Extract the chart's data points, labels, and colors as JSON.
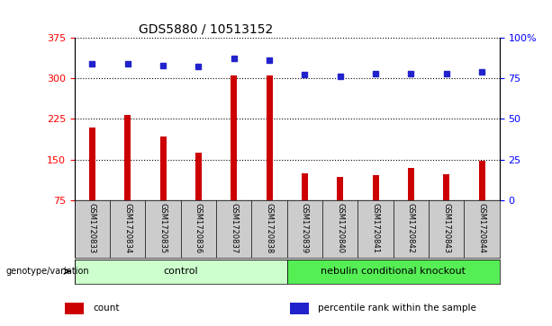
{
  "title": "GDS5880 / 10513152",
  "samples": [
    "GSM1720833",
    "GSM1720834",
    "GSM1720835",
    "GSM1720836",
    "GSM1720837",
    "GSM1720838",
    "GSM1720839",
    "GSM1720840",
    "GSM1720841",
    "GSM1720842",
    "GSM1720843",
    "GSM1720844"
  ],
  "counts": [
    210,
    232,
    193,
    163,
    305,
    305,
    125,
    118,
    122,
    135,
    124,
    148
  ],
  "percentiles": [
    84,
    84,
    83,
    82,
    87,
    86,
    77,
    76,
    78,
    78,
    78,
    79
  ],
  "ylim_left": [
    75,
    375
  ],
  "ylim_right": [
    0,
    100
  ],
  "yticks_left": [
    75,
    150,
    225,
    300,
    375
  ],
  "yticks_right": [
    0,
    25,
    75,
    100
  ],
  "yticks_right_labeled": [
    0,
    25,
    50,
    75,
    100
  ],
  "bar_color": "#cc0000",
  "dot_color": "#2222cc",
  "groups": [
    {
      "label": "control",
      "start": 0,
      "end": 6,
      "color": "#ccffcc"
    },
    {
      "label": "nebulin conditional knockout",
      "start": 6,
      "end": 12,
      "color": "#55ee55"
    }
  ],
  "group_label": "genotype/variation",
  "legend_items": [
    {
      "label": "count",
      "color": "#cc0000"
    },
    {
      "label": "percentile rank within the sample",
      "color": "#2222cc"
    }
  ],
  "background_color": "#ffffff",
  "plot_bg_color": "#ffffff",
  "label_area_bg": "#cccccc",
  "grid_color": "#000000",
  "title_fontsize": 10,
  "tick_fontsize": 8,
  "sample_fontsize": 6,
  "group_fontsize": 8,
  "bar_width": 0.18
}
